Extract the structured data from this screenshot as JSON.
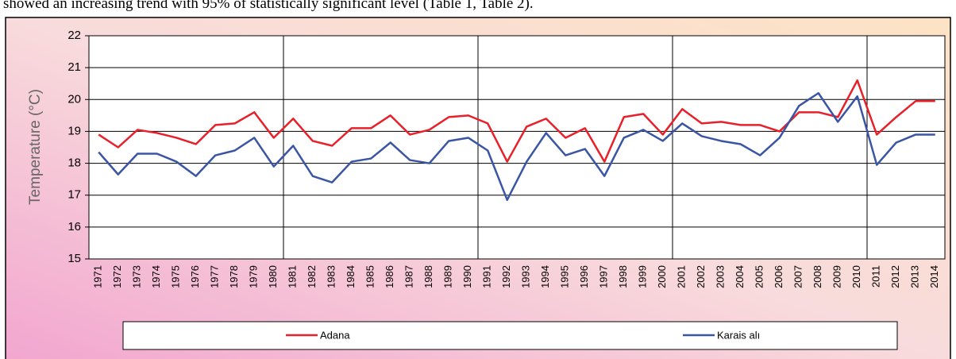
{
  "page_text": "showed an increasing trend with 95% of statistically significant level (Table 1, Table 2).",
  "chart_data": {
    "type": "line",
    "y_label": "Temperature (°C)",
    "categories": [
      "1971",
      "1972",
      "1973",
      "1974",
      "1975",
      "1976",
      "1977",
      "1978",
      "1979",
      "1980",
      "1981",
      "1982",
      "1983",
      "1984",
      "1985",
      "1986",
      "1987",
      "1988",
      "1989",
      "1990",
      "1991",
      "1992",
      "1993",
      "1994",
      "1995",
      "1996",
      "1997",
      "1998",
      "1999",
      "2000",
      "2001",
      "2002",
      "2003",
      "2004",
      "2005",
      "2006",
      "2007",
      "2008",
      "2009",
      "2010",
      "2011",
      "2012",
      "2013",
      "2014"
    ],
    "series": [
      {
        "name": "Adana",
        "color": "#e8202a",
        "values": [
          18.9,
          18.5,
          19.05,
          18.95,
          18.8,
          18.6,
          19.2,
          19.25,
          19.6,
          18.8,
          19.4,
          18.7,
          18.55,
          19.1,
          19.1,
          19.5,
          18.9,
          19.05,
          19.45,
          19.5,
          19.25,
          18.05,
          19.15,
          19.4,
          18.8,
          19.1,
          18.05,
          19.45,
          19.55,
          18.9,
          19.7,
          19.25,
          19.3,
          19.2,
          19.2,
          19.0,
          19.6,
          19.6,
          19.45,
          20.6,
          18.9,
          19.45,
          19.95,
          19.95
        ]
      },
      {
        "name": "Karais alı",
        "color": "#3a55a4",
        "values": [
          18.35,
          17.65,
          18.3,
          18.3,
          18.05,
          17.6,
          18.25,
          18.4,
          18.8,
          17.9,
          18.55,
          17.6,
          17.4,
          18.05,
          18.15,
          18.65,
          18.1,
          18.0,
          18.7,
          18.8,
          18.4,
          16.85,
          18.05,
          18.95,
          18.25,
          18.45,
          17.6,
          18.8,
          19.05,
          18.7,
          19.25,
          18.85,
          18.7,
          18.6,
          18.25,
          18.8,
          19.8,
          20.2,
          19.3,
          20.1,
          17.95,
          18.65,
          18.9,
          18.9
        ]
      }
    ],
    "ylim": [
      15,
      22
    ],
    "yticks": [
      15,
      16,
      17,
      18,
      19,
      20,
      21,
      22
    ],
    "grid": true,
    "legend": "bottom"
  }
}
